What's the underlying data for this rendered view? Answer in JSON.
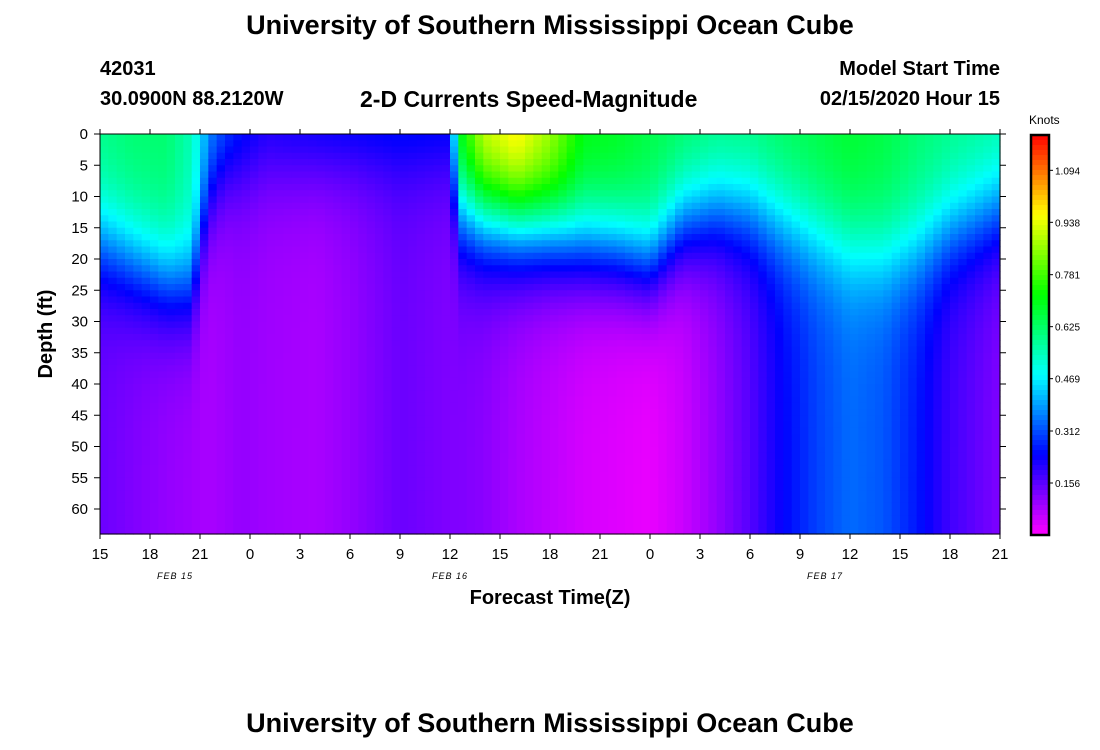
{
  "header": {
    "title_top": "University of Southern Mississippi Ocean Cube",
    "title_bottom": "University of Southern Mississippi Ocean Cube",
    "station_id": "42031",
    "location": "30.0900N 88.2120W",
    "plot_title": "2-D Currents Speed-Magnitude",
    "model_label": "Model Start Time",
    "model_time": "02/15/2020 Hour 15"
  },
  "chart_data": {
    "type": "heatmap",
    "title": "2-D Currents Speed-Magnitude",
    "xlabel": "Forecast Time(Z)",
    "ylabel": "Depth (ft)",
    "ylim": [
      0,
      64
    ],
    "y_inverted": true,
    "xlim_hours": [
      0,
      54
    ],
    "x_ticks": [
      {
        "h": 0,
        "label": "15"
      },
      {
        "h": 3,
        "label": "18"
      },
      {
        "h": 6,
        "label": "21"
      },
      {
        "h": 9,
        "label": "0"
      },
      {
        "h": 12,
        "label": "3"
      },
      {
        "h": 15,
        "label": "6"
      },
      {
        "h": 18,
        "label": "9"
      },
      {
        "h": 21,
        "label": "12"
      },
      {
        "h": 24,
        "label": "15"
      },
      {
        "h": 27,
        "label": "18"
      },
      {
        "h": 30,
        "label": "21"
      },
      {
        "h": 33,
        "label": "0"
      },
      {
        "h": 36,
        "label": "3"
      },
      {
        "h": 39,
        "label": "6"
      },
      {
        "h": 42,
        "label": "9"
      },
      {
        "h": 45,
        "label": "12"
      },
      {
        "h": 48,
        "label": "15"
      },
      {
        "h": 51,
        "label": "18"
      },
      {
        "h": 54,
        "label": "21"
      }
    ],
    "y_ticks": [
      0,
      5,
      10,
      15,
      20,
      25,
      30,
      35,
      40,
      45,
      50,
      55,
      60
    ],
    "date_labels": [
      {
        "h": 4.5,
        "label": "FEB 15"
      },
      {
        "h": 21,
        "label": "FEB 16"
      },
      {
        "h": 43.5,
        "label": "FEB 17"
      }
    ],
    "colorbar": {
      "unit": "Knots",
      "ticks": [
        0.156,
        0.312,
        0.469,
        0.625,
        0.781,
        0.938,
        1.094
      ],
      "tick_labels": [
        "0.156",
        "0.312",
        "0.469",
        "0.625",
        "0.781",
        "0.938",
        "1.094"
      ],
      "range": [
        0.0,
        1.2
      ]
    },
    "profiles": [
      {
        "h": 0,
        "surf": 0.6,
        "layer": 17,
        "bottom": 0.14
      },
      {
        "h": 2,
        "surf": 0.62,
        "layer": 20,
        "bottom": 0.12
      },
      {
        "h": 4,
        "surf": 0.62,
        "layer": 23,
        "bottom": 0.1
      },
      {
        "h": 5.5,
        "surf": 0.55,
        "layer": 24,
        "bottom": 0.09
      },
      {
        "h": 6.5,
        "surf": 0.4,
        "layer": 10,
        "bottom": 0.08
      },
      {
        "h": 7.5,
        "surf": 0.36,
        "layer": 5,
        "bottom": 0.09
      },
      {
        "h": 8.5,
        "surf": 0.3,
        "layer": 5,
        "bottom": 0.1
      },
      {
        "h": 10,
        "surf": 0.26,
        "layer": 4,
        "bottom": 0.09
      },
      {
        "h": 13,
        "surf": 0.3,
        "layer": 3,
        "bottom": 0.08
      },
      {
        "h": 15,
        "surf": 0.32,
        "layer": 2,
        "bottom": 0.1
      },
      {
        "h": 18,
        "surf": 0.32,
        "layer": 2,
        "bottom": 0.14
      },
      {
        "h": 21,
        "surf": 0.32,
        "layer": 2,
        "bottom": 0.12
      },
      {
        "h": 21.5,
        "surf": 0.72,
        "layer": 12,
        "bottom": 0.12
      },
      {
        "h": 23,
        "surf": 0.95,
        "layer": 13,
        "bottom": 0.11
      },
      {
        "h": 25,
        "surf": 1.02,
        "layer": 14,
        "bottom": 0.08
      },
      {
        "h": 27,
        "surf": 0.9,
        "layer": 15,
        "bottom": 0.06
      },
      {
        "h": 29,
        "surf": 0.72,
        "layer": 17,
        "bottom": 0.04
      },
      {
        "h": 31,
        "surf": 0.7,
        "layer": 18,
        "bottom": 0.03
      },
      {
        "h": 33,
        "surf": 0.66,
        "layer": 20,
        "bottom": 0.02
      },
      {
        "h": 35,
        "surf": 0.64,
        "layer": 14,
        "bottom": 0.05
      },
      {
        "h": 37,
        "surf": 0.62,
        "layer": 12,
        "bottom": 0.1
      },
      {
        "h": 39,
        "surf": 0.62,
        "layer": 12,
        "bottom": 0.16
      },
      {
        "h": 41,
        "surf": 0.64,
        "layer": 14,
        "bottom": 0.24
      },
      {
        "h": 43,
        "surf": 0.66,
        "layer": 16,
        "bottom": 0.3
      },
      {
        "h": 45,
        "surf": 0.68,
        "layer": 18,
        "bottom": 0.34
      },
      {
        "h": 47,
        "surf": 0.66,
        "layer": 19,
        "bottom": 0.32
      },
      {
        "h": 49,
        "surf": 0.62,
        "layer": 18,
        "bottom": 0.26
      },
      {
        "h": 51,
        "surf": 0.6,
        "layer": 15,
        "bottom": 0.18
      },
      {
        "h": 54,
        "surf": 0.58,
        "layer": 12,
        "bottom": 0.12
      }
    ]
  }
}
